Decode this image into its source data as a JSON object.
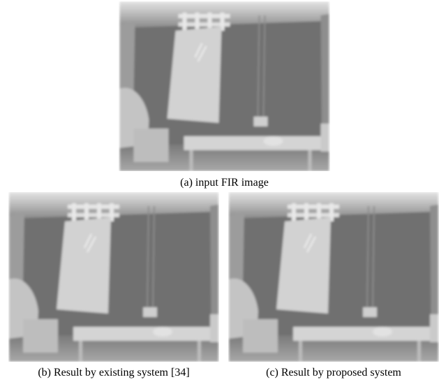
{
  "figure": {
    "panels": [
      {
        "caption": "(a) input FIR image"
      },
      {
        "caption": "(b) Result by existing system [34]"
      },
      {
        "caption": "(c) Result by proposed system"
      }
    ]
  }
}
